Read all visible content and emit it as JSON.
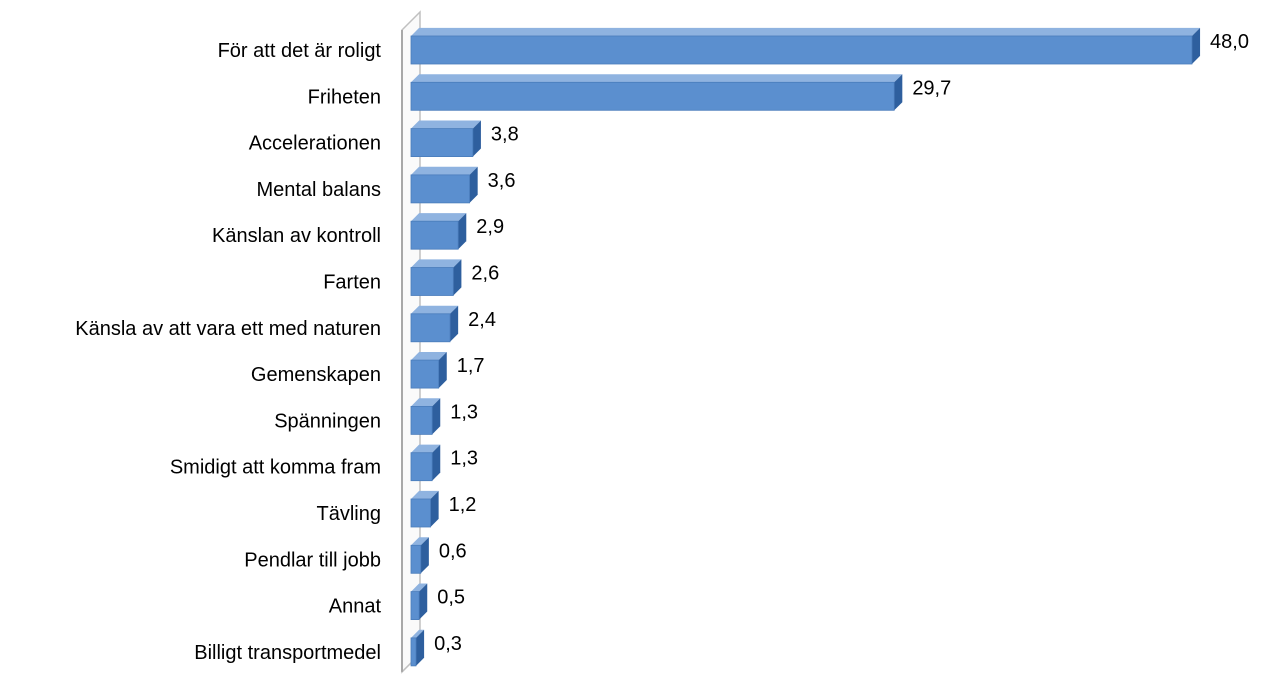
{
  "chart_data": {
    "type": "bar",
    "orientation": "horizontal",
    "style": "3d",
    "categories": [
      "För att det är roligt",
      "Friheten",
      "Accelerationen",
      "Mental balans",
      "Känslan av kontroll ",
      "Farten",
      "Känsla av att vara ett med naturen",
      "Gemenskapen",
      "Spänningen",
      "Smidigt att komma fram",
      "Tävling",
      "Pendlar till jobb",
      "Annat",
      "Billigt transportmedel"
    ],
    "values": [
      48.0,
      29.7,
      3.8,
      3.6,
      2.9,
      2.6,
      2.4,
      1.7,
      1.3,
      1.3,
      1.2,
      0.6,
      0.5,
      0.3
    ],
    "value_labels": [
      "48,0",
      "29,7",
      "3,8",
      "3,6",
      "2,9",
      "2,6",
      "2,4",
      "1,7",
      "1,3",
      "1,3",
      "1,2",
      "0,6",
      "0,5",
      "0,3"
    ],
    "xlim": [
      0,
      48
    ],
    "grid": false,
    "legend": "none",
    "colors": {
      "bar_front": "#5b8fcf",
      "bar_top": "#8fb3e0",
      "bar_side": "#2e5f9e",
      "wall_stroke": "#c0c0c0"
    }
  }
}
